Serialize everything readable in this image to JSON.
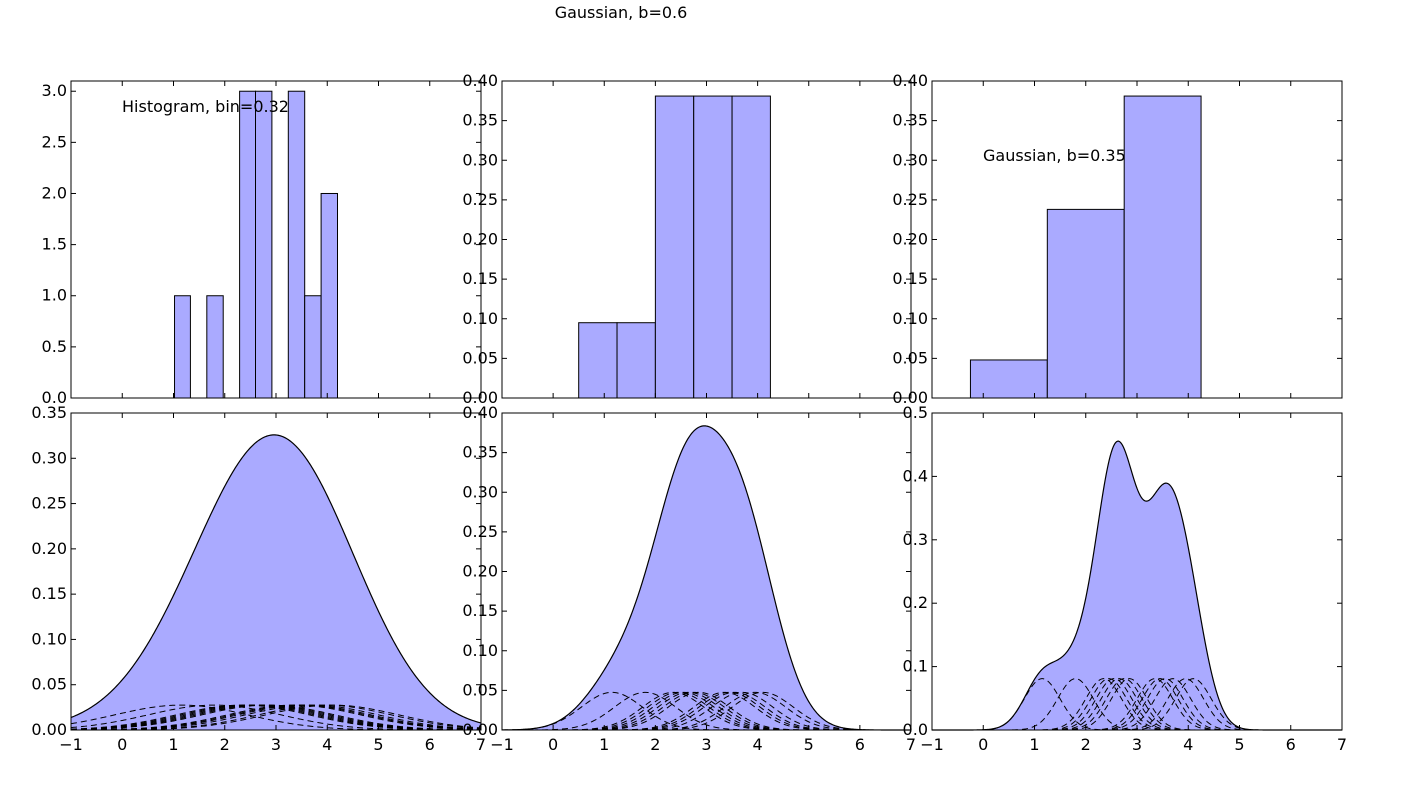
{
  "colors": {
    "fill": "#aaaaff",
    "stroke": "#000000",
    "background": "#ffffff"
  },
  "figure": {
    "title": "Gaussian, b=0.6"
  },
  "chart_data": [
    {
      "id": "top-left",
      "type": "bar",
      "annotation": "Histogram, bin=0.32",
      "xlim": [
        -1,
        7
      ],
      "ylim": [
        0,
        3.1
      ],
      "yticks": [
        0.0,
        0.5,
        1.0,
        1.5,
        2.0,
        2.5,
        3.0
      ],
      "ytick_labels": [
        "0.0",
        "0.5",
        "1.0",
        "1.5",
        "2.0",
        "2.5",
        "3.0"
      ],
      "show_xticklabels": false,
      "baseline": [
        -0.25,
        5.7
      ],
      "bars": [
        {
          "x0": 1.02,
          "x1": 1.33,
          "value": 1
        },
        {
          "x0": 1.65,
          "x1": 1.97,
          "value": 1
        },
        {
          "x0": 2.29,
          "x1": 2.6,
          "value": 3
        },
        {
          "x0": 2.6,
          "x1": 2.92,
          "value": 3
        },
        {
          "x0": 3.24,
          "x1": 3.56,
          "value": 3
        },
        {
          "x0": 3.56,
          "x1": 3.88,
          "value": 1
        },
        {
          "x0": 3.88,
          "x1": 4.2,
          "value": 2
        }
      ]
    },
    {
      "id": "top-middle",
      "type": "bar",
      "annotation": "",
      "xlim": [
        -1,
        7
      ],
      "ylim": [
        0,
        0.4
      ],
      "yticks": [
        0.0,
        0.05,
        0.1,
        0.15,
        0.2,
        0.25,
        0.3,
        0.35,
        0.4
      ],
      "ytick_labels": [
        "0.00",
        "0.05",
        "0.10",
        "0.15",
        "0.20",
        "0.25",
        "0.30",
        "0.35",
        "0.40"
      ],
      "show_xticklabels": false,
      "baseline": [
        -0.25,
        5.7
      ],
      "bars": [
        {
          "x0": 0.5,
          "x1": 1.25,
          "value": 0.095
        },
        {
          "x0": 1.25,
          "x1": 2.0,
          "value": 0.095
        },
        {
          "x0": 2.0,
          "x1": 2.75,
          "value": 0.381
        },
        {
          "x0": 2.75,
          "x1": 3.5,
          "value": 0.381
        },
        {
          "x0": 3.5,
          "x1": 4.25,
          "value": 0.381
        }
      ]
    },
    {
      "id": "top-right",
      "type": "bar",
      "annotation": "Gaussian, b=0.35",
      "xlim": [
        -1,
        7
      ],
      "ylim": [
        0,
        0.4
      ],
      "yticks": [
        0.0,
        0.05,
        0.1,
        0.15,
        0.2,
        0.25,
        0.3,
        0.35,
        0.4
      ],
      "ytick_labels": [
        "0.00",
        "0.05",
        "0.10",
        "0.15",
        "0.20",
        "0.25",
        "0.30",
        "0.35",
        "0.40"
      ],
      "show_xticklabels": false,
      "baseline": [
        -0.25,
        5.7
      ],
      "bars": [
        {
          "x0": -0.25,
          "x1": 1.25,
          "value": 0.048
        },
        {
          "x0": 1.25,
          "x1": 2.75,
          "value": 0.238
        },
        {
          "x0": 2.75,
          "x1": 4.25,
          "value": 0.381
        }
      ]
    },
    {
      "id": "bottom-left",
      "type": "area",
      "annotation": "",
      "xlim": [
        -1,
        7
      ],
      "ylim": [
        0,
        0.35
      ],
      "yticks": [
        0.0,
        0.05,
        0.1,
        0.15,
        0.2,
        0.25,
        0.3,
        0.35
      ],
      "ytick_labels": [
        "0.00",
        "0.05",
        "0.10",
        "0.15",
        "0.20",
        "0.25",
        "0.30",
        "0.35"
      ],
      "xticks": [
        -1,
        0,
        1,
        2,
        3,
        4,
        5,
        6,
        7
      ],
      "xtick_labels": [
        "−1",
        "0",
        "1",
        "2",
        "3",
        "4",
        "5",
        "6",
        "7"
      ],
      "show_xticklabels": true,
      "kernel_bandwidth": 1.3,
      "kernel_peak": 0.0275,
      "points": [
        1.15,
        1.8,
        2.35,
        2.45,
        2.55,
        2.65,
        2.75,
        2.85,
        3.35,
        3.45,
        3.55,
        3.7,
        3.95,
        4.1
      ]
    },
    {
      "id": "bottom-middle",
      "type": "area",
      "annotation": "",
      "xlim": [
        -1,
        7
      ],
      "ylim": [
        0,
        0.4
      ],
      "yticks": [
        0.0,
        0.05,
        0.1,
        0.15,
        0.2,
        0.25,
        0.3,
        0.35,
        0.4
      ],
      "ytick_labels": [
        "0.00",
        "0.05",
        "0.10",
        "0.15",
        "0.20",
        "0.25",
        "0.30",
        "0.35",
        "0.40"
      ],
      "xticks": [
        -1,
        0,
        1,
        2,
        3,
        4,
        5,
        6,
        7
      ],
      "xtick_labels": [
        "−1",
        "0",
        "1",
        "2",
        "3",
        "4",
        "5",
        "6",
        "7"
      ],
      "show_xticklabels": true,
      "kernel_bandwidth": 0.6,
      "kernel_peak": 0.0475,
      "points": [
        1.15,
        1.8,
        2.35,
        2.45,
        2.55,
        2.65,
        2.75,
        2.85,
        3.35,
        3.45,
        3.55,
        3.7,
        3.95,
        4.1
      ]
    },
    {
      "id": "bottom-right",
      "type": "area",
      "annotation": "",
      "xlim": [
        -1,
        7
      ],
      "ylim": [
        0,
        0.5
      ],
      "yticks": [
        0.0,
        0.1,
        0.2,
        0.3,
        0.4,
        0.5
      ],
      "ytick_labels": [
        "0.0",
        "0.1",
        "0.2",
        "0.3",
        "0.4",
        "0.5"
      ],
      "xticks": [
        -1,
        0,
        1,
        2,
        3,
        4,
        5,
        6,
        7
      ],
      "xtick_labels": [
        "−1",
        "0",
        "1",
        "2",
        "3",
        "4",
        "5",
        "6",
        "7"
      ],
      "show_xticklabels": true,
      "kernel_bandwidth": 0.35,
      "kernel_peak": 0.081,
      "points": [
        1.15,
        1.8,
        2.35,
        2.45,
        2.55,
        2.65,
        2.75,
        2.85,
        3.35,
        3.45,
        3.55,
        3.7,
        3.95,
        4.1
      ]
    }
  ]
}
